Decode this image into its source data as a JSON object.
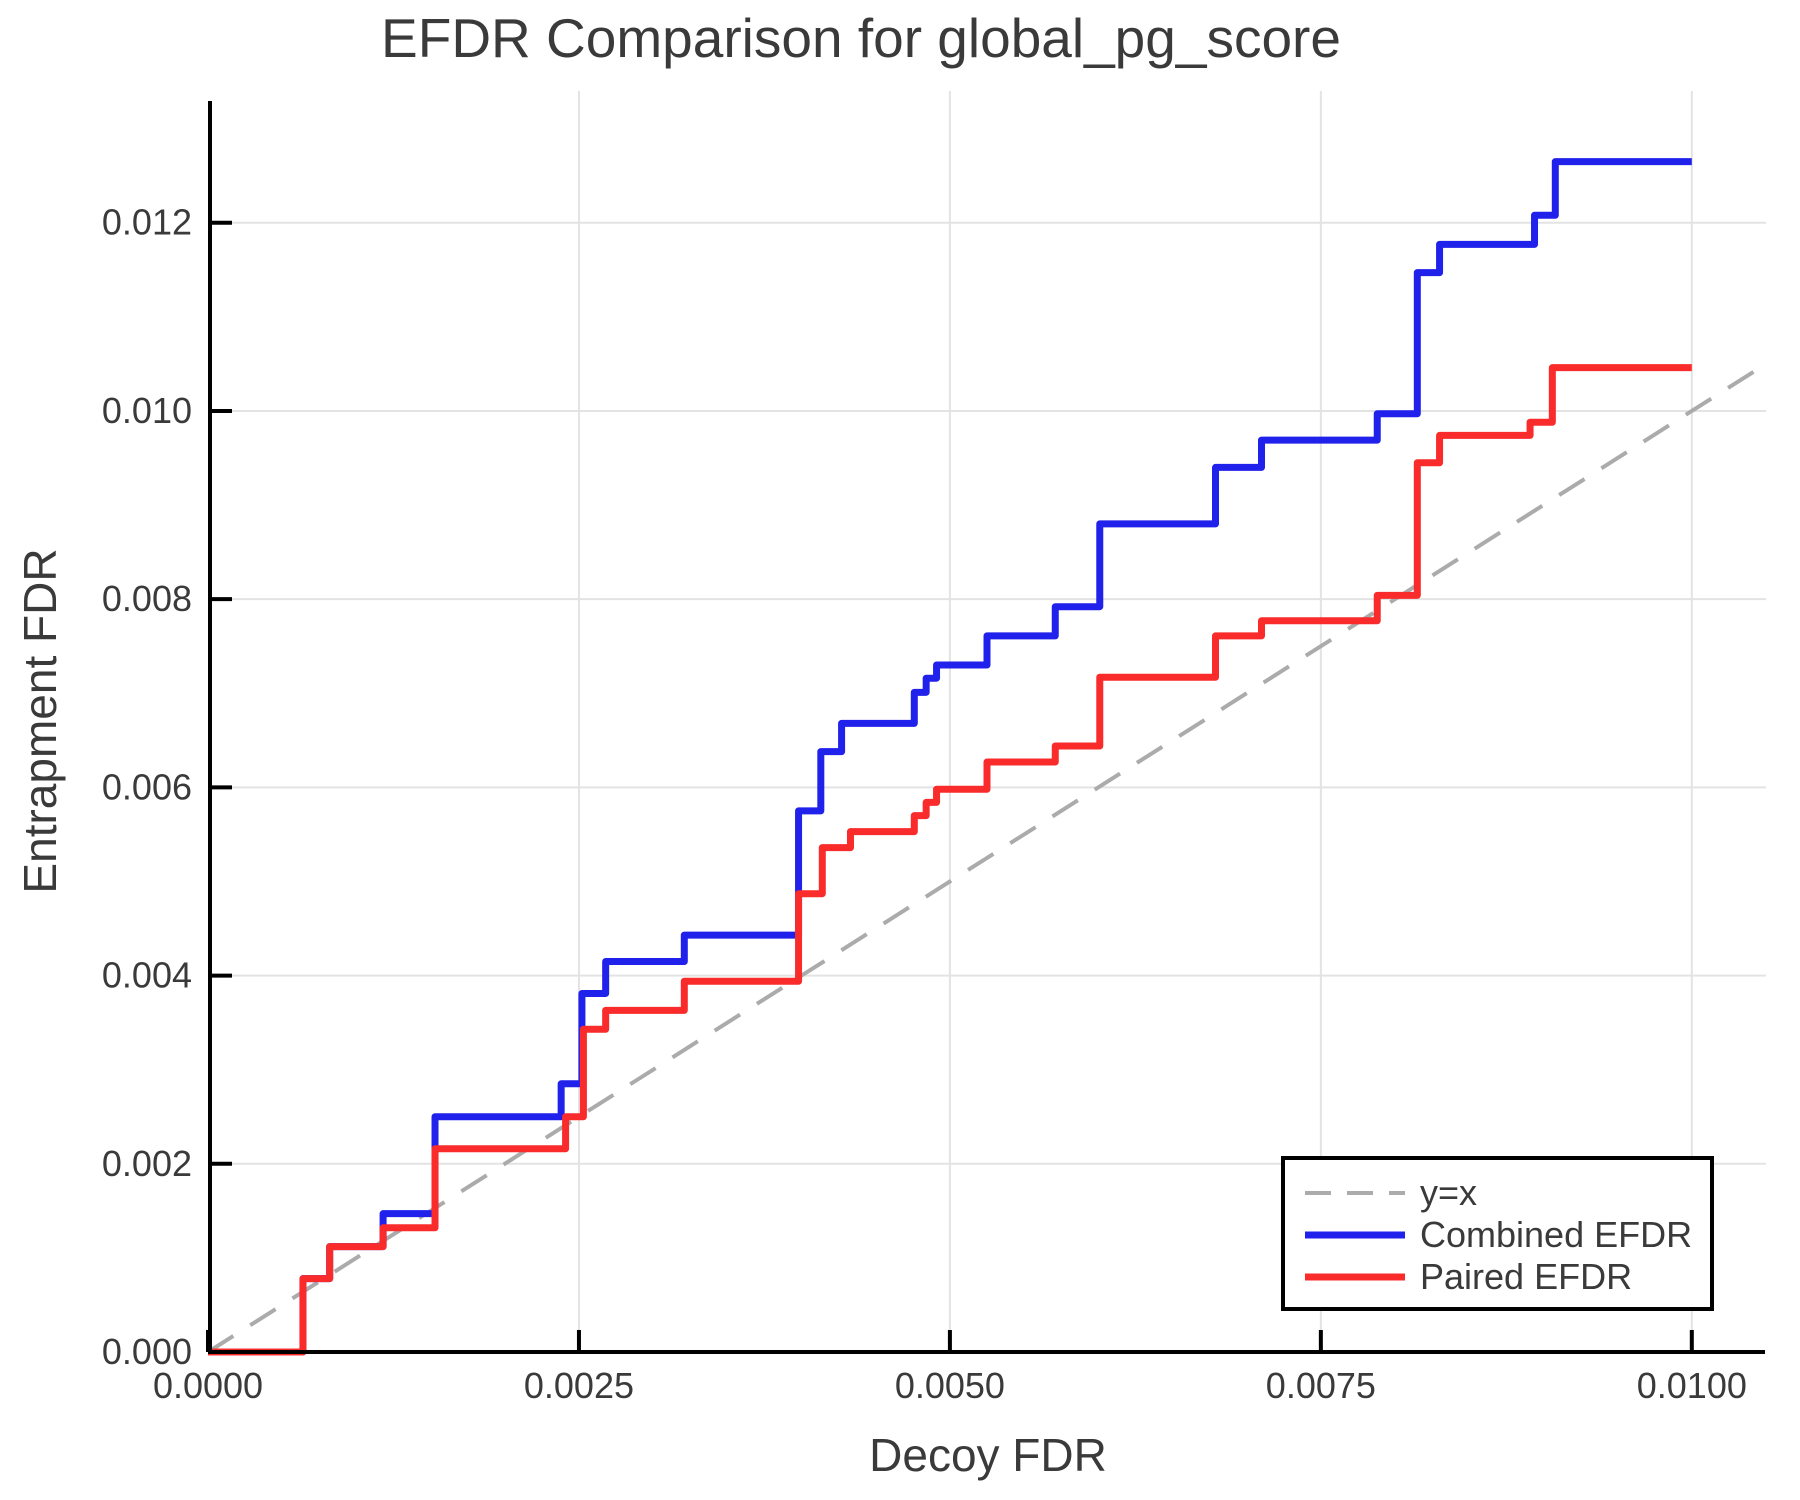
{
  "title": "EFDR Comparison for global_pg_score",
  "chart_data": {
    "type": "line",
    "subtype": "step-post-comparison",
    "title": "EFDR Comparison for global_pg_score",
    "xlabel": "Decoy FDR",
    "ylabel": "Entrapment FDR",
    "xlim": [
      0,
      0.0105
    ],
    "ylim": [
      0,
      0.0134
    ],
    "grid": true,
    "background": "#ffffff",
    "grid_color": "#e3e3e3",
    "spine_color": "#000000",
    "text_color": "#3a3a3a",
    "x_ticks": {
      "values": [
        0.0,
        0.0025,
        0.005,
        0.0075,
        0.01
      ],
      "labels": [
        "0.0000",
        "0.0025",
        "0.0050",
        "0.0075",
        "0.0100"
      ]
    },
    "y_ticks": {
      "values": [
        0.0,
        0.002,
        0.004,
        0.006,
        0.008,
        0.01,
        0.012
      ],
      "labels": [
        "0.000",
        "0.002",
        "0.004",
        "0.006",
        "0.008",
        "0.010",
        "0.012"
      ]
    },
    "legend_position": "bottom-right",
    "series": [
      {
        "name": "y=x",
        "kind": "identity-line",
        "style": "dashed",
        "color": "#ababab",
        "width": 4,
        "points": [
          [
            0,
            0
          ],
          [
            0.0105,
            0.0105
          ]
        ]
      },
      {
        "name": "Combined EFDR",
        "kind": "step",
        "style": "solid",
        "color": "#2121ec",
        "width": 7,
        "x_start": 0,
        "y_start": 0,
        "x_end": 0.01,
        "steps": [
          [
            0.00064,
            0.00078
          ],
          [
            0.00082,
            0.00112
          ],
          [
            0.00118,
            0.00147
          ],
          [
            0.00153,
            0.0025
          ],
          [
            0.00238,
            0.00285
          ],
          [
            0.00252,
            0.00381
          ],
          [
            0.00268,
            0.00415
          ],
          [
            0.00321,
            0.00443
          ],
          [
            0.00398,
            0.00575
          ],
          [
            0.00413,
            0.00638
          ],
          [
            0.00427,
            0.00668
          ],
          [
            0.00476,
            0.00701
          ],
          [
            0.00484,
            0.00716
          ],
          [
            0.00491,
            0.0073
          ],
          [
            0.00525,
            0.00761
          ],
          [
            0.00571,
            0.00792
          ],
          [
            0.00601,
            0.0088
          ],
          [
            0.00679,
            0.0094
          ],
          [
            0.0071,
            0.00969
          ],
          [
            0.00788,
            0.00997
          ],
          [
            0.00815,
            0.01147
          ],
          [
            0.0083,
            0.01177
          ],
          [
            0.00894,
            0.01208
          ],
          [
            0.00908,
            0.01265
          ]
        ]
      },
      {
        "name": "Paired EFDR",
        "kind": "step",
        "style": "solid",
        "color": "#f92b2b",
        "width": 7,
        "x_start": 0,
        "y_start": 0,
        "x_end": 0.01,
        "steps": [
          [
            0.00064,
            0.00078
          ],
          [
            0.00082,
            0.00112
          ],
          [
            0.00118,
            0.00132
          ],
          [
            0.00153,
            0.00216
          ],
          [
            0.00241,
            0.0025
          ],
          [
            0.00253,
            0.00343
          ],
          [
            0.00268,
            0.00363
          ],
          [
            0.00321,
            0.00394
          ],
          [
            0.00398,
            0.00487
          ],
          [
            0.00414,
            0.00536
          ],
          [
            0.00433,
            0.00553
          ],
          [
            0.00476,
            0.0057
          ],
          [
            0.00484,
            0.00584
          ],
          [
            0.00491,
            0.00598
          ],
          [
            0.00525,
            0.00627
          ],
          [
            0.00571,
            0.00644
          ],
          [
            0.00601,
            0.00717
          ],
          [
            0.00679,
            0.00761
          ],
          [
            0.0071,
            0.00777
          ],
          [
            0.00788,
            0.00804
          ],
          [
            0.00815,
            0.00945
          ],
          [
            0.0083,
            0.00974
          ],
          [
            0.00891,
            0.00988
          ],
          [
            0.00906,
            0.01046
          ]
        ]
      }
    ],
    "legend": {
      "border_color": "#000000",
      "fill": "#ffffff",
      "entries": [
        "y=x",
        "Combined EFDR",
        "Paired EFDR"
      ]
    }
  }
}
